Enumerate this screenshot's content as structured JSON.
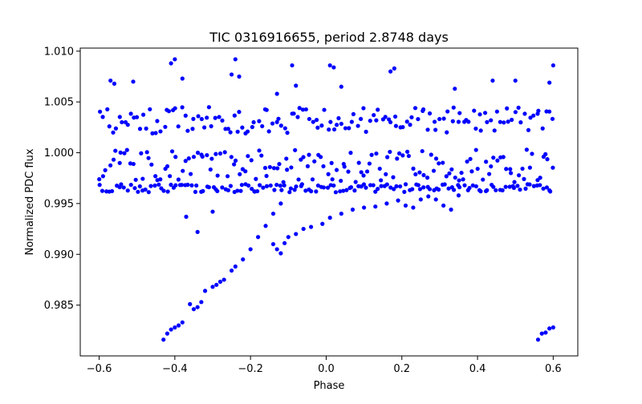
{
  "chart_data": {
    "type": "scatter",
    "title": "TIC 0316916655, period 2.8748 days",
    "xlabel": "Phase",
    "ylabel": "Normalized PDC flux",
    "xlim": [
      -0.65,
      0.665
    ],
    "ylim": [
      0.98,
      1.0103
    ],
    "xticks": [
      -0.6,
      -0.4,
      -0.2,
      0.0,
      0.2,
      0.4,
      0.6
    ],
    "xtick_labels": [
      "−0.6",
      "−0.4",
      "−0.2",
      "0.0",
      "0.2",
      "0.4",
      "0.6"
    ],
    "yticks": [
      0.985,
      0.99,
      0.995,
      1.0,
      1.005,
      1.01
    ],
    "ytick_labels": [
      "0.985",
      "0.990",
      "0.995",
      "1.000",
      "1.005",
      "1.010"
    ],
    "marker_color": "#0000ff",
    "bands": [
      {
        "name": "upper band",
        "x_range": [
          -0.6,
          0.6
        ],
        "y_center": 1.0032,
        "y_spread": 0.0013
      },
      {
        "name": "middle band",
        "x_range": [
          -0.6,
          0.6
        ],
        "y_center": 0.9987,
        "y_spread": 0.0016
      },
      {
        "name": "lower band",
        "x_range": [
          -0.6,
          0.6
        ],
        "y_center": 0.9965,
        "y_spread": 0.0004
      }
    ],
    "series": [
      {
        "name": "transit ingress/egress segment",
        "points": [
          [
            -0.43,
            0.9816
          ],
          [
            -0.42,
            0.9822
          ],
          [
            -0.41,
            0.9826
          ],
          [
            -0.4,
            0.9828
          ],
          [
            -0.39,
            0.983
          ],
          [
            -0.38,
            0.9833
          ],
          [
            -0.36,
            0.9851
          ],
          [
            -0.35,
            0.9846
          ],
          [
            -0.34,
            0.9848
          ],
          [
            -0.33,
            0.9853
          ],
          [
            -0.32,
            0.9864
          ],
          [
            -0.3,
            0.9868
          ],
          [
            -0.29,
            0.987
          ],
          [
            -0.28,
            0.9873
          ],
          [
            -0.27,
            0.9875
          ],
          [
            -0.25,
            0.9884
          ],
          [
            -0.24,
            0.9888
          ],
          [
            -0.22,
            0.9895
          ],
          [
            -0.2,
            0.9905
          ],
          [
            -0.18,
            0.9917
          ],
          [
            -0.16,
            0.9928
          ],
          [
            -0.14,
            0.994
          ],
          [
            -0.12,
            0.995
          ],
          [
            -0.1,
            0.9917
          ],
          [
            -0.08,
            0.992
          ],
          [
            -0.06,
            0.9925
          ],
          [
            -0.04,
            0.9927
          ],
          [
            -0.01,
            0.993
          ],
          [
            0.01,
            0.9936
          ],
          [
            0.04,
            0.994
          ],
          [
            0.07,
            0.9944
          ],
          [
            0.1,
            0.9946
          ],
          [
            0.13,
            0.9947
          ],
          [
            0.16,
            0.995
          ],
          [
            0.19,
            0.9953
          ],
          [
            0.21,
            0.9948
          ],
          [
            0.23,
            0.9946
          ],
          [
            0.25,
            0.9954
          ],
          [
            0.27,
            0.9957
          ],
          [
            0.29,
            0.9954
          ],
          [
            0.31,
            0.9948
          ],
          [
            0.33,
            0.9944
          ],
          [
            0.35,
            0.9958
          ],
          [
            0.56,
            0.9816
          ],
          [
            0.57,
            0.9822
          ],
          [
            0.58,
            0.9823
          ],
          [
            0.59,
            0.9827
          ],
          [
            0.6,
            0.9828
          ]
        ]
      },
      {
        "name": "outliers",
        "points": [
          [
            -0.57,
            1.0071
          ],
          [
            -0.56,
            1.0068
          ],
          [
            -0.51,
            1.007
          ],
          [
            -0.41,
            1.0088
          ],
          [
            -0.4,
            1.0092
          ],
          [
            -0.38,
            1.0073
          ],
          [
            -0.25,
            1.0077
          ],
          [
            -0.24,
            1.0092
          ],
          [
            -0.23,
            1.0075
          ],
          [
            -0.13,
            1.0058
          ],
          [
            -0.09,
            1.0086
          ],
          [
            -0.08,
            1.0066
          ],
          [
            0.01,
            1.0086
          ],
          [
            0.02,
            1.0084
          ],
          [
            0.04,
            1.0065
          ],
          [
            0.17,
            1.008
          ],
          [
            0.18,
            1.0083
          ],
          [
            0.34,
            1.0063
          ],
          [
            0.44,
            1.0071
          ],
          [
            0.5,
            1.0071
          ],
          [
            0.59,
            1.0069
          ],
          [
            0.6,
            1.0086
          ],
          [
            -0.37,
            0.9937
          ],
          [
            -0.34,
            0.9922
          ],
          [
            -0.3,
            0.9942
          ],
          [
            -0.19,
            0.9962
          ],
          [
            -0.14,
            0.991
          ],
          [
            -0.13,
            0.9905
          ],
          [
            -0.12,
            0.9901
          ],
          [
            -0.11,
            0.9911
          ]
        ]
      }
    ]
  }
}
